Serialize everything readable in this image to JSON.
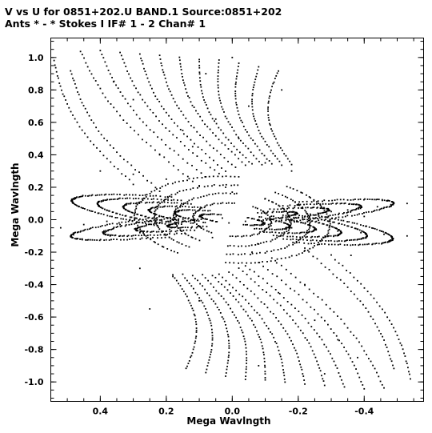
{
  "header": {
    "line1": "V vs U for 0851+202.U BAND.1   Source:0851+202",
    "line2": "Ants * - *     Stokes I   IF# 1 - 2  Chan# 1"
  },
  "chart_data": {
    "type": "scatter",
    "title": "V vs U for 0851+202.U BAND.1   Source:0851+202",
    "subtitle": "Ants * - *     Stokes I   IF# 1 - 2  Chan# 1",
    "xlabel": "Mega Wavlngth",
    "ylabel": "Mega Wavlngth",
    "x_axis_reversed": true,
    "xlim": [
      0.55,
      -0.58
    ],
    "ylim": [
      -1.12,
      1.12
    ],
    "x_ticks": [
      0.4,
      0.2,
      0.0,
      -0.2,
      -0.4
    ],
    "x_tick_labels": [
      "0.4",
      "0.2",
      "0.0",
      "-0.2",
      "-0.4"
    ],
    "y_ticks": [
      1.0,
      0.8,
      0.6,
      0.4,
      0.2,
      0.0,
      -0.2,
      -0.4,
      -0.6,
      -0.8,
      -1.0
    ],
    "y_tick_labels": [
      "1.0",
      "0.8",
      "0.6",
      "0.4",
      "0.2",
      "0.0",
      "-0.2",
      "-0.4",
      "-0.6",
      "-0.8",
      "-1.0"
    ],
    "grid": false,
    "legend": "none",
    "marker_color": "#000000",
    "series": [
      {
        "x": [
          0.52,
          0.45,
          0.38,
          0.31,
          0.24,
          0.17,
          0.1,
          0.03,
          -0.04,
          -0.11,
          -0.18,
          -0.25,
          -0.32,
          -0.39,
          -0.46,
          -0.53,
          -0.53,
          -0.44,
          -0.35,
          -0.26,
          -0.17,
          -0.08,
          0.01,
          0.1,
          0.19,
          0.28,
          0.37,
          0.46,
          0.4,
          0.3,
          0.2,
          0.1,
          0.0,
          -0.1,
          -0.2,
          -0.3,
          -0.4,
          -0.36,
          -0.22,
          -0.08,
          0.06,
          0.2,
          0.34,
          0.15,
          0.05,
          -0.05,
          -0.15,
          0.25,
          -0.25,
          0.0,
          0.08,
          -0.08,
          0.3,
          0.22,
          0.12,
          0.02,
          -0.06,
          -0.14,
          -0.22,
          -0.32,
          -0.38,
          0.36,
          0.28,
          0.18,
          0.1,
          -0.02,
          -0.1,
          -0.18,
          -0.28
        ],
        "y": [
          -0.05,
          -0.03,
          -0.01,
          0.0,
          0.01,
          0.02,
          0.02,
          0.01,
          -0.01,
          -0.03,
          -0.05,
          -0.06,
          -0.07,
          -0.08,
          -0.09,
          -0.1,
          0.1,
          0.08,
          0.06,
          0.04,
          0.02,
          0.0,
          -0.02,
          -0.04,
          -0.06,
          -0.08,
          -0.1,
          -0.12,
          0.3,
          0.28,
          0.25,
          0.21,
          0.17,
          0.13,
          0.09,
          0.05,
          0.02,
          -0.22,
          -0.19,
          -0.15,
          -0.11,
          -0.07,
          -0.03,
          0.55,
          0.62,
          0.7,
          0.8,
          -0.55,
          -0.62,
          1.0,
          0.9,
          -0.9,
          0.74,
          0.4,
          0.45,
          0.2,
          -0.2,
          -0.45,
          -0.4,
          -0.74,
          -0.85,
          0.85,
          -0.3,
          -0.35,
          -0.5,
          0.5,
          0.35,
          0.3,
          -0.95
        ]
      }
    ],
    "uv_pattern": {
      "arc_ellipses": [
        {
          "a": 0.5,
          "b": 0.1,
          "phi_deg": 14,
          "reach_deg": 130
        },
        {
          "a": 0.42,
          "b": 0.085,
          "phi_deg": 14,
          "reach_deg": 130
        },
        {
          "a": 0.34,
          "b": 0.07,
          "phi_deg": 14,
          "reach_deg": 130
        },
        {
          "a": 0.26,
          "b": 0.055,
          "phi_deg": 14,
          "reach_deg": 130
        },
        {
          "a": 0.18,
          "b": 0.04,
          "phi_deg": 14,
          "reach_deg": 130
        },
        {
          "a": 0.1,
          "b": 0.025,
          "phi_deg": 14,
          "reach_deg": 130
        },
        {
          "a": 0.5,
          "b": 0.07,
          "phi_deg": -12,
          "reach_deg": 130
        },
        {
          "a": 0.4,
          "b": 0.056,
          "phi_deg": -12,
          "reach_deg": 130
        },
        {
          "a": 0.3,
          "b": 0.042,
          "phi_deg": -12,
          "reach_deg": 130
        },
        {
          "a": 0.2,
          "b": 0.028,
          "phi_deg": -12,
          "reach_deg": 130
        },
        {
          "a": 0.3,
          "b": 0.26,
          "phi_deg": 22,
          "reach_deg": 150
        },
        {
          "a": 0.24,
          "b": 0.21,
          "phi_deg": 22,
          "reach_deg": 150
        },
        {
          "a": 0.18,
          "b": 0.16,
          "phi_deg": 22,
          "reach_deg": 150
        },
        {
          "a": 0.12,
          "b": 0.1,
          "phi_deg": 22,
          "reach_deg": 150
        }
      ],
      "vertical_tracks": [
        {
          "x0": 0.46,
          "x1": 0.12,
          "y0": 1.04,
          "y1": 0.24
        },
        {
          "x0": 0.4,
          "x1": 0.08,
          "y0": 1.04,
          "y1": 0.26
        },
        {
          "x0": 0.34,
          "x1": 0.04,
          "y0": 1.03,
          "y1": 0.28
        },
        {
          "x0": 0.28,
          "x1": 0.02,
          "y0": 1.02,
          "y1": 0.3
        },
        {
          "x0": 0.22,
          "x1": -0.01,
          "y0": 1.01,
          "y1": 0.32
        },
        {
          "x0": 0.16,
          "x1": -0.04,
          "y0": 1.0,
          "y1": 0.34
        },
        {
          "x0": 0.1,
          "x1": -0.06,
          "y0": 0.99,
          "y1": 0.34
        },
        {
          "x0": 0.04,
          "x1": -0.09,
          "y0": 0.98,
          "y1": 0.34
        },
        {
          "x0": -0.02,
          "x1": -0.12,
          "y0": 0.96,
          "y1": 0.34
        },
        {
          "x0": -0.08,
          "x1": -0.15,
          "y0": 0.94,
          "y1": 0.34
        },
        {
          "x0": -0.14,
          "x1": -0.18,
          "y0": 0.92,
          "y1": 0.34
        },
        {
          "x0": 0.49,
          "x1": 0.22,
          "y0": 0.92,
          "y1": 0.18
        },
        {
          "x0": 0.54,
          "x1": 0.3,
          "y0": 0.98,
          "y1": 0.22
        }
      ]
    }
  }
}
